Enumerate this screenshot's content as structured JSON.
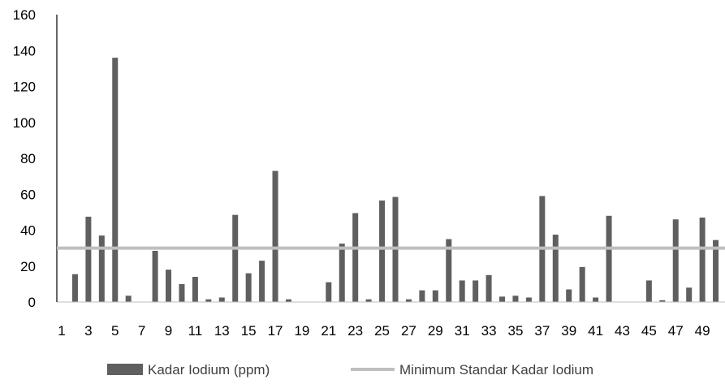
{
  "chart_data": {
    "type": "bar",
    "x": [
      1,
      2,
      3,
      4,
      5,
      6,
      7,
      8,
      9,
      10,
      11,
      12,
      13,
      14,
      15,
      16,
      17,
      18,
      19,
      20,
      21,
      22,
      23,
      24,
      25,
      26,
      27,
      28,
      29,
      30,
      31,
      32,
      33,
      34,
      35,
      36,
      37,
      38,
      39,
      40,
      41,
      42,
      43,
      44,
      45,
      46,
      47,
      48,
      49,
      50
    ],
    "x_tick_labels": [
      "1",
      "3",
      "5",
      "7",
      "9",
      "11",
      "13",
      "15",
      "17",
      "19",
      "21",
      "23",
      "25",
      "27",
      "29",
      "31",
      "33",
      "35",
      "37",
      "39",
      "41",
      "43",
      "45",
      "47",
      "49"
    ],
    "ylim": [
      0,
      160
    ],
    "y_ticks": [
      0,
      20,
      40,
      60,
      80,
      100,
      120,
      140,
      160
    ],
    "series": [
      {
        "name": "Kadar Iodium (ppm)",
        "kind": "bar",
        "color": "#5f5f5f",
        "values": [
          0,
          15.5,
          47.5,
          37.0,
          136.0,
          3.5,
          0,
          28.5,
          18.0,
          10.0,
          14.0,
          1.5,
          2.5,
          48.5,
          16.0,
          23.0,
          73.0,
          1.5,
          0,
          0,
          11.0,
          32.5,
          49.5,
          1.5,
          56.5,
          58.5,
          1.5,
          6.5,
          6.5,
          35.0,
          12.0,
          12.0,
          15.0,
          3.0,
          3.5,
          2.5,
          59.0,
          37.5,
          7.0,
          19.5,
          2.5,
          48.0,
          0,
          0,
          12.0,
          1.0,
          46.0,
          8.0,
          47.0,
          34.5
        ]
      },
      {
        "name": "Minimum Standar Kadar Iodium",
        "kind": "line",
        "color": "#bfbfbf",
        "value": 30
      }
    ],
    "legend_position": "bottom",
    "grid": false
  }
}
